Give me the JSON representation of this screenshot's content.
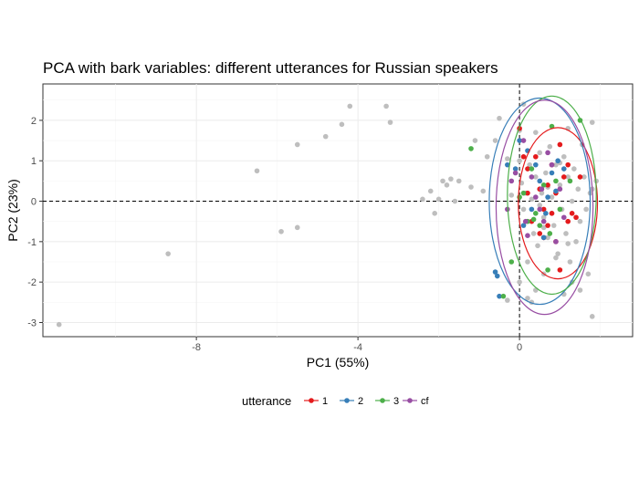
{
  "chart_data": {
    "type": "scatter",
    "title": "PCA with bark variables: different utterances for Russian speakers",
    "xlabel": "PC1 (55%)",
    "ylabel": "PC2 (23%)",
    "xlim": [
      -11.8,
      2.8
    ],
    "ylim": [
      -3.35,
      2.9
    ],
    "x_ticks": [
      -8,
      -4,
      0
    ],
    "y_ticks": [
      -3,
      -2,
      -1,
      0,
      1,
      2
    ],
    "grid": true,
    "reference_lines": {
      "x": 0,
      "y": 0,
      "style": "dashed"
    },
    "legend": {
      "title": "utterance",
      "position": "bottom",
      "entries": [
        {
          "label": "1",
          "color": "#E41A1C"
        },
        {
          "label": "2",
          "color": "#377EB8"
        },
        {
          "label": "3",
          "color": "#4DAF4A"
        },
        {
          "label": "cf",
          "color": "#984EA3"
        }
      ]
    },
    "background_points": {
      "color": "#BEBEBE",
      "x": [
        -11.4,
        -8.7,
        -6.5,
        -5.9,
        -5.5,
        -5.5,
        -4.8,
        -4.4,
        -4.2,
        -3.3,
        -3.2,
        -2.4,
        -2.2,
        -2.1,
        -2.0,
        -1.9,
        -1.8,
        -1.7,
        -1.6,
        -1.5,
        -1.2,
        -1.1,
        -0.9,
        -0.8,
        -0.6,
        -0.5,
        -0.3,
        -0.2,
        -0.1,
        0.0,
        0.05,
        0.1,
        0.15,
        0.2,
        0.25,
        0.3,
        0.35,
        0.4,
        0.45,
        0.5,
        0.55,
        0.6,
        0.65,
        0.7,
        0.75,
        0.8,
        0.85,
        0.9,
        0.95,
        1.0,
        1.05,
        1.1,
        1.15,
        1.2,
        1.25,
        1.3,
        1.35,
        1.4,
        1.45,
        1.5,
        1.55,
        1.6,
        1.65,
        1.7,
        1.75,
        1.8,
        0.2,
        0.4,
        0.6,
        0.9,
        1.1,
        1.3,
        0.3,
        0.5,
        0.7,
        0.1,
        0.8,
        1.0,
        1.2,
        0.0,
        0.2,
        0.4,
        1.8,
        1.9,
        1.8,
        0.6,
        0.0,
        -0.3,
        1.2,
        1.5
      ],
      "y": [
        -3.05,
        -1.3,
        0.75,
        -0.75,
        -0.65,
        1.4,
        1.6,
        1.9,
        2.35,
        2.35,
        1.95,
        0.05,
        0.25,
        -0.3,
        0.05,
        0.5,
        0.4,
        0.55,
        0.0,
        0.5,
        0.35,
        1.5,
        0.25,
        1.1,
        1.5,
        2.05,
        1.05,
        0.15,
        0.7,
        1.0,
        0.45,
        -0.2,
        0.2,
        -0.5,
        0.9,
        0.05,
        -0.8,
        0.6,
        -1.1,
        1.2,
        0.2,
        -0.4,
        0.7,
        -0.9,
        1.35,
        0.1,
        -0.6,
        0.9,
        -1.3,
        0.4,
        -0.2,
        1.1,
        -0.8,
        0.6,
        -1.5,
        0.0,
        0.8,
        -1.0,
        0.3,
        -0.5,
        1.4,
        0.6,
        -0.2,
        -1.8,
        0.2,
        1.95,
        -1.5,
        -2.2,
        -1.8,
        -1.4,
        -2.3,
        -2.0,
        -2.5,
        -0.1,
        0.35,
        2.4,
        -0.3,
        0.95,
        1.8,
        -2.0,
        -2.4,
        1.7,
        -2.85,
        0.5,
        0.3,
        -0.65,
        1.75,
        -2.45,
        -1.05,
        -2.2
      ]
    },
    "series": [
      {
        "name": "1",
        "color": "#E41A1C",
        "x": [
          0.0,
          0.2,
          0.3,
          0.5,
          0.6,
          0.7,
          0.8,
          0.9,
          1.0,
          1.1,
          1.2,
          1.3,
          1.4,
          0.4,
          0.6,
          0.9,
          1.2,
          0.2,
          0.5,
          0.7,
          0.8,
          1.5,
          0.1,
          1.0
        ],
        "y": [
          1.8,
          0.2,
          -0.5,
          -0.8,
          -0.2,
          0.4,
          0.9,
          -1.0,
          1.4,
          0.6,
          -0.5,
          -0.3,
          -0.4,
          1.1,
          -0.9,
          0.2,
          0.9,
          0.8,
          0.3,
          -0.6,
          -0.3,
          0.6,
          1.1,
          -1.7
        ]
      },
      {
        "name": "2",
        "color": "#377EB8",
        "x": [
          -0.6,
          -0.5,
          -0.55,
          -0.3,
          -0.1,
          0.0,
          0.2,
          0.3,
          0.5,
          0.6,
          0.7,
          0.8,
          0.9,
          1.1,
          0.4,
          0.1,
          0.65,
          0.95
        ],
        "y": [
          -1.75,
          -2.35,
          -1.85,
          0.9,
          0.8,
          1.5,
          1.25,
          -0.2,
          0.5,
          -0.9,
          0.1,
          0.7,
          0.25,
          0.8,
          0.9,
          -0.6,
          -0.3,
          1.0
        ]
      },
      {
        "name": "3",
        "color": "#4DAF4A",
        "x": [
          -1.2,
          -0.4,
          -0.2,
          0.0,
          0.2,
          0.4,
          0.5,
          0.6,
          0.7,
          0.8,
          0.9,
          1.0,
          1.5,
          0.1,
          0.3,
          0.75,
          0.35,
          1.25
        ],
        "y": [
          1.3,
          -2.35,
          -1.5,
          0.1,
          -0.5,
          -0.3,
          -0.6,
          0.4,
          -1.7,
          1.85,
          0.5,
          -0.2,
          2.0,
          0.2,
          0.8,
          -0.8,
          -0.45,
          0.5
        ]
      },
      {
        "name": "cf",
        "color": "#984EA3",
        "x": [
          -0.3,
          -0.1,
          0.1,
          0.2,
          0.4,
          0.6,
          0.8,
          1.0,
          0.3,
          0.5,
          0.9,
          0.15,
          0.7,
          -0.2,
          0.55,
          1.1
        ],
        "y": [
          -0.2,
          0.7,
          1.5,
          -0.85,
          0.1,
          -0.5,
          0.9,
          0.3,
          0.6,
          -0.2,
          -1.0,
          -0.5,
          1.2,
          0.5,
          0.3,
          -0.4
        ]
      }
    ],
    "ellipses": [
      {
        "name": "1",
        "color": "#E41A1C",
        "cx": 0.95,
        "cy": -0.05,
        "rx": 0.98,
        "ry": 1.87
      },
      {
        "name": "2",
        "color": "#377EB8",
        "cx": 0.5,
        "cy": 0.0,
        "rx": 1.25,
        "ry": 2.55
      },
      {
        "name": "3",
        "color": "#4DAF4A",
        "cx": 0.8,
        "cy": 0.15,
        "rx": 1.1,
        "ry": 2.45
      },
      {
        "name": "cf",
        "color": "#984EA3",
        "cx": 0.62,
        "cy": -0.15,
        "rx": 1.2,
        "ry": 2.65
      }
    ]
  }
}
